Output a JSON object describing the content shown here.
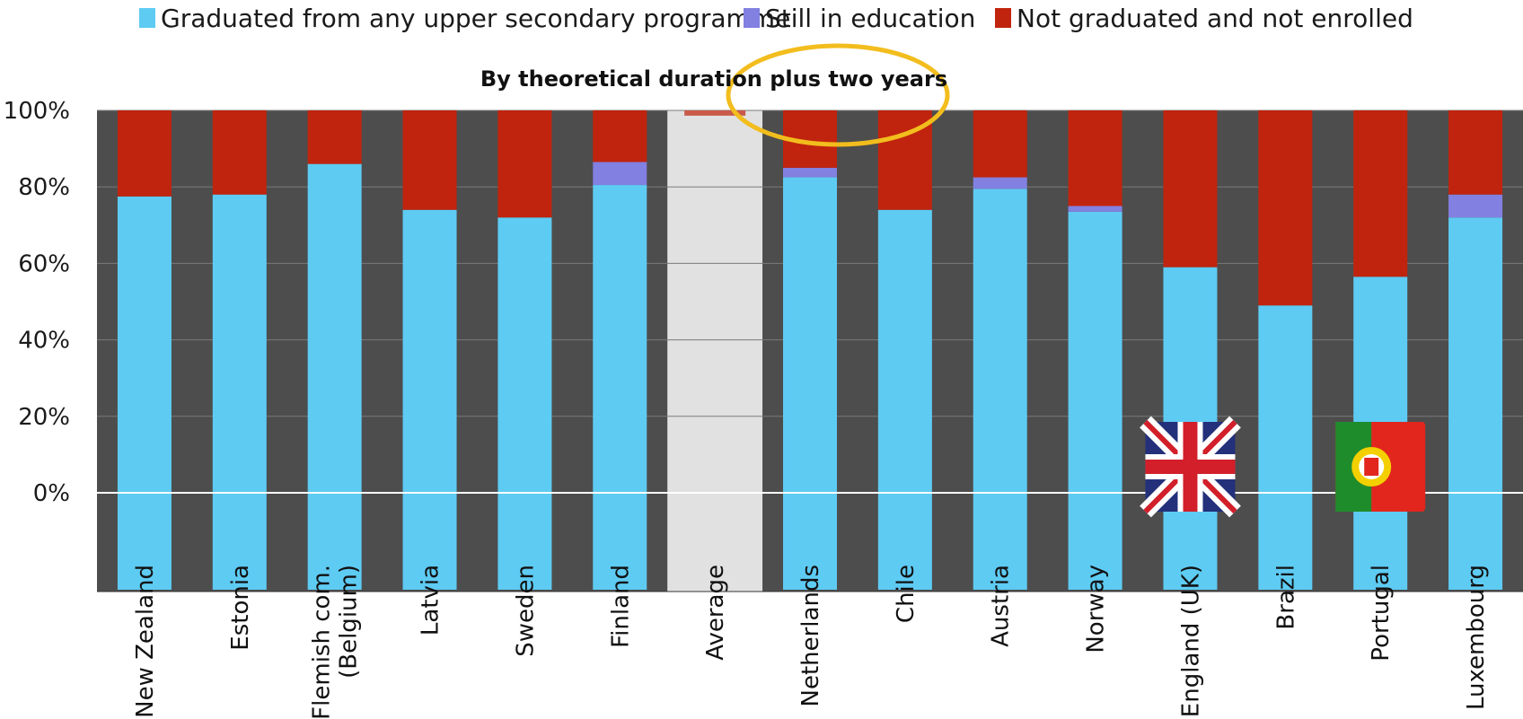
{
  "colors": {
    "graduated": "#5ecbf3",
    "still": "#8280e0",
    "not_graduated": "#c0240e",
    "plot_bg": "#4d4d4d",
    "average_bg": "#e1e1e1",
    "highlight_ring": "#f2bd1d"
  },
  "legend": [
    {
      "label": "Graduated from any upper secondary programme",
      "color_key": "graduated"
    },
    {
      "label": "Still in education",
      "color_key": "still"
    },
    {
      "label": "Not graduated and not enrolled",
      "color_key": "not_graduated"
    }
  ],
  "flags": [
    {
      "category": "England (UK)",
      "icon": "uk-flag-icon"
    },
    {
      "category": "Portugal",
      "icon": "portugal-flag-icon"
    }
  ],
  "chart_data": {
    "type": "bar",
    "stacked": true,
    "title": "By theoretical duration plus two years",
    "xlabel": "",
    "ylabel": "",
    "ylim": [
      -25,
      100
    ],
    "yticks": [
      "100%",
      "80%",
      "60%",
      "40%",
      "20%",
      "0%"
    ],
    "grid": true,
    "legend_position": "top",
    "highlighted_category": "Average",
    "categories": [
      "New Zealand",
      "Estonia",
      "Flemish com. (Belgium)",
      "Latvia",
      "Sweden",
      "Finland",
      "Average",
      "Netherlands",
      "Chile",
      "Austria",
      "Norway",
      "England (UK)",
      "Brazil",
      "Portugal",
      "Luxembourg"
    ],
    "series": [
      {
        "name": "Graduated from any upper secondary programme",
        "values": [
          77.5,
          78,
          86,
          74,
          72,
          80.5,
          null,
          82.5,
          74,
          79.5,
          73.5,
          59,
          49,
          56.5,
          72
        ]
      },
      {
        "name": "Still in education",
        "values": [
          0,
          0,
          0,
          0,
          0,
          6,
          null,
          2.5,
          0,
          3,
          1.5,
          0,
          0,
          0,
          6
        ]
      },
      {
        "name": "Not graduated and not enrolled",
        "values": [
          22.5,
          22,
          14,
          26,
          28,
          13.5,
          2.5,
          15,
          26,
          17.5,
          25,
          41,
          51,
          43.5,
          22
        ]
      }
    ]
  }
}
